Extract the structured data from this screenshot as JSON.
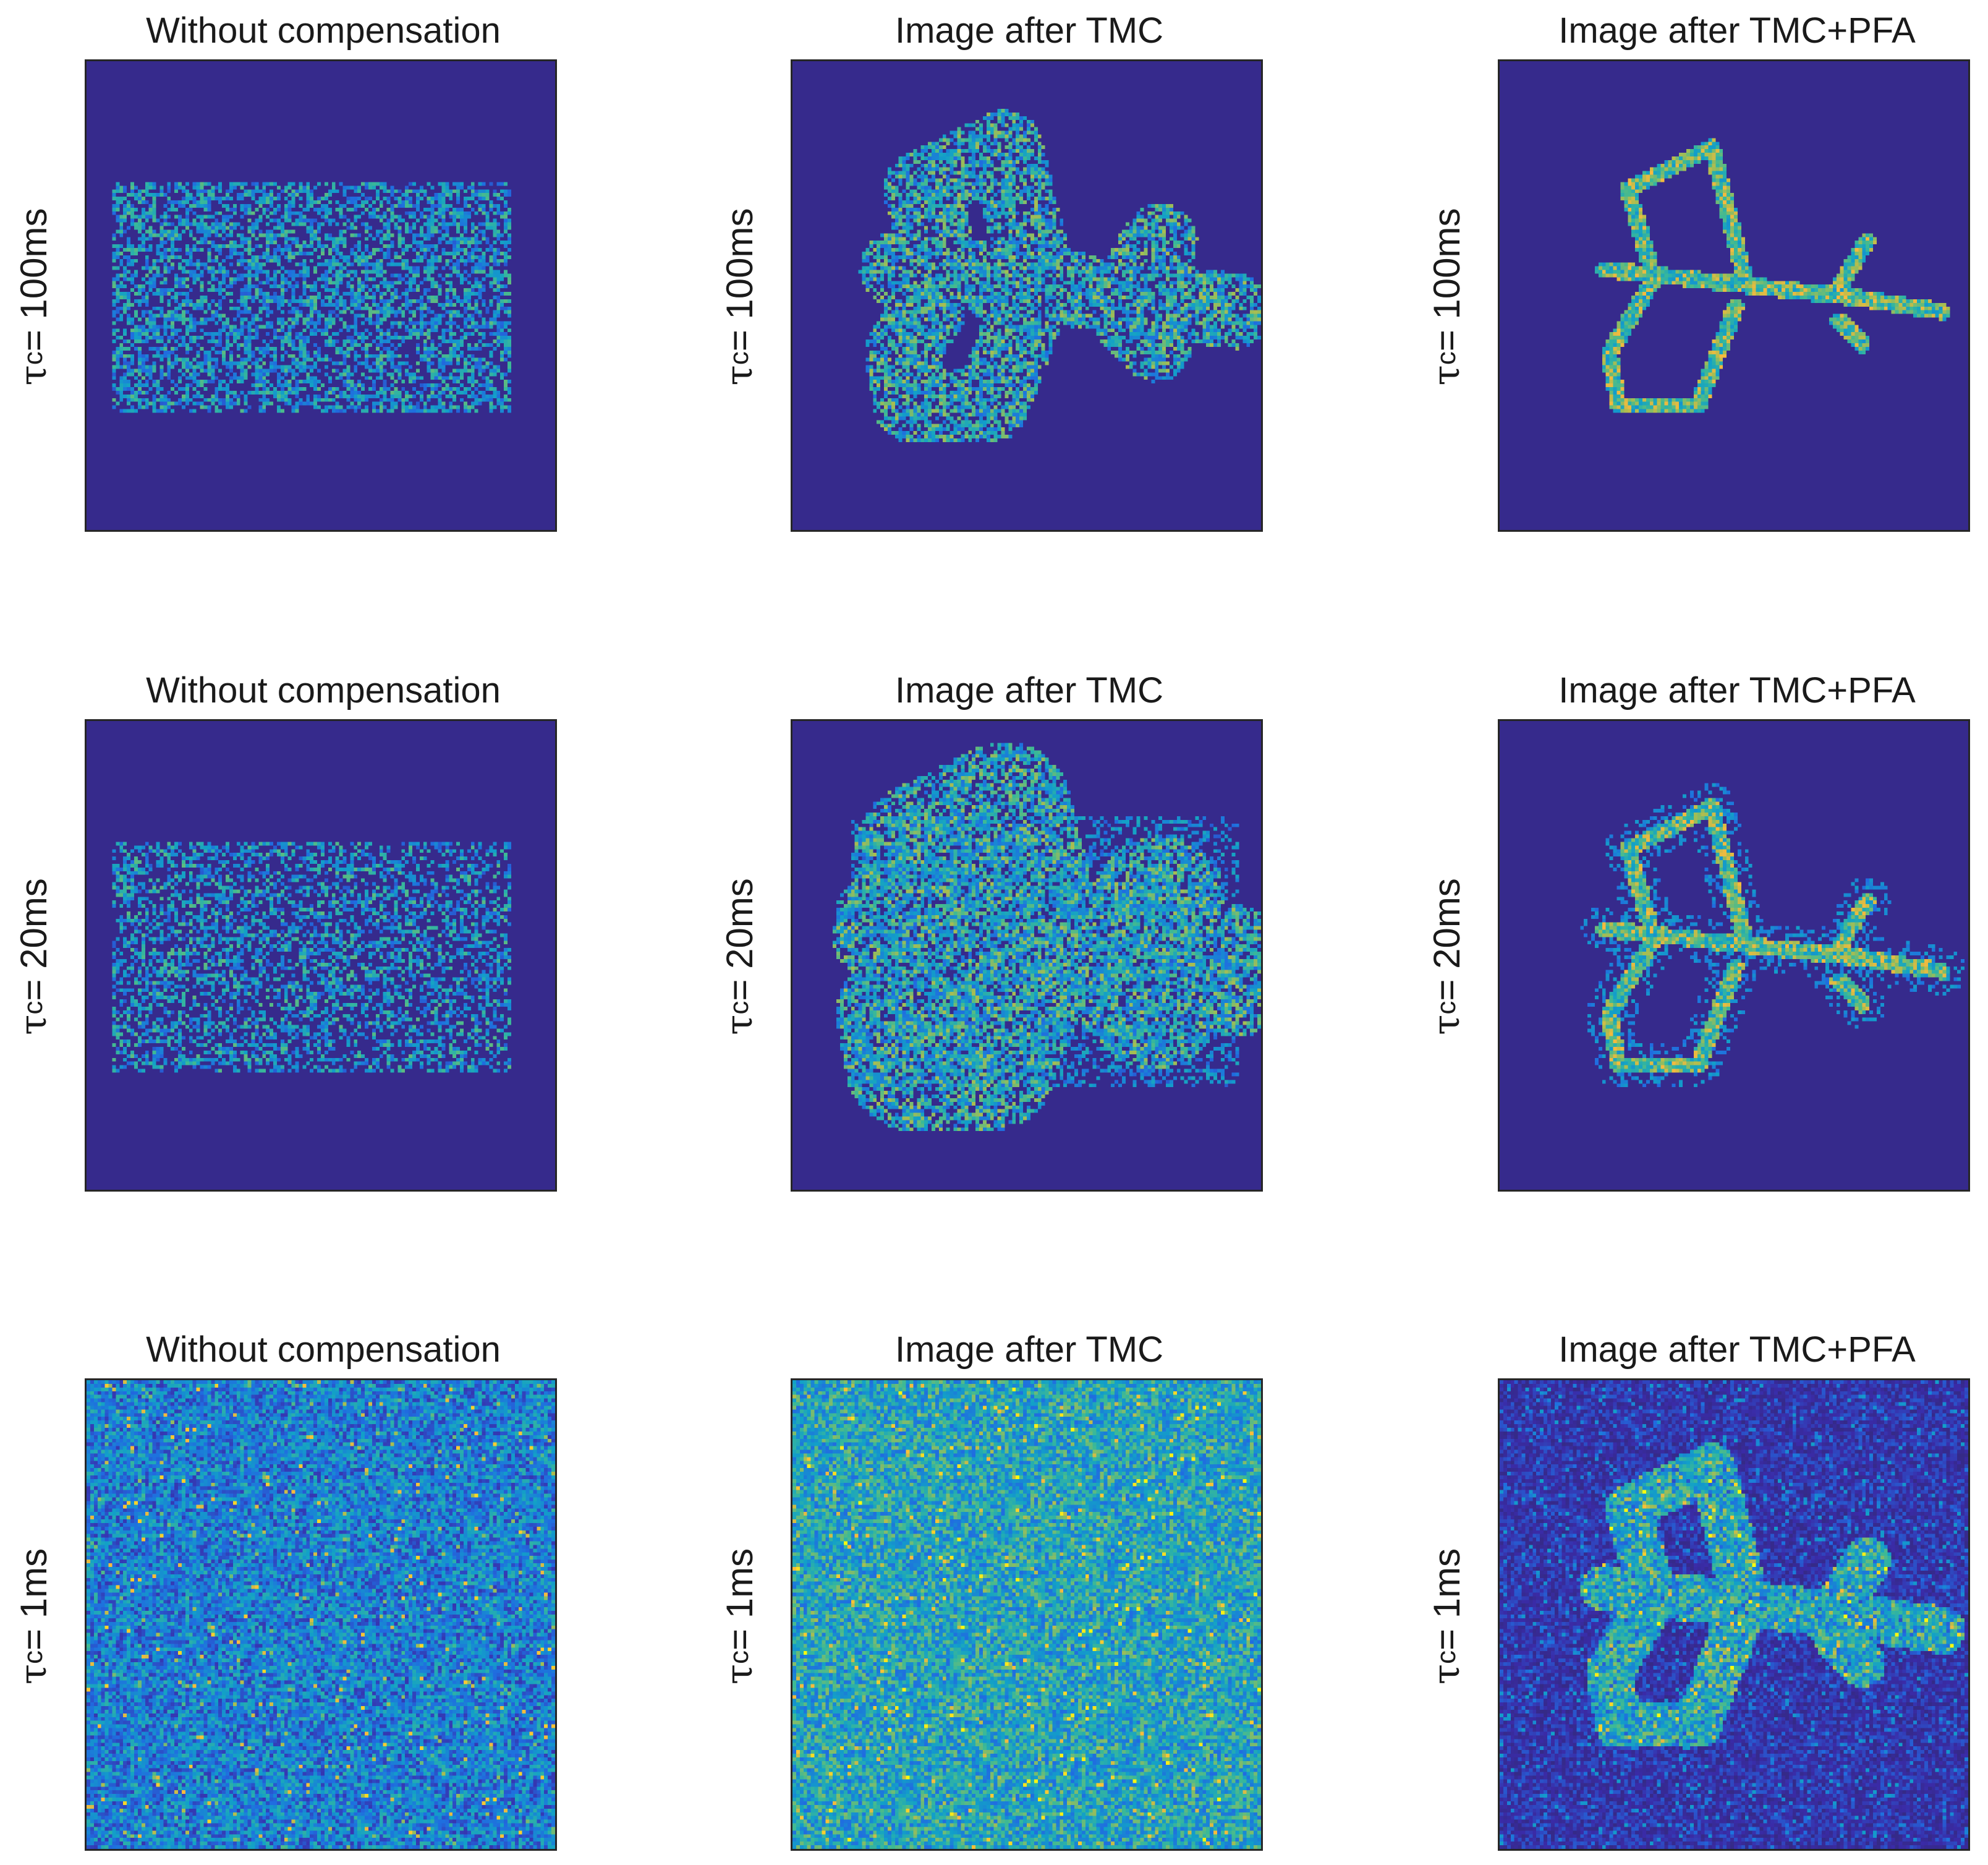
{
  "figure": {
    "column_titles": [
      "Without compensation",
      "Image after TMC",
      "Image after TMC+PFA"
    ],
    "rows": [
      {
        "label_symbol": "τ",
        "label_subscript": "c",
        "label_text": " = 100ms"
      },
      {
        "label_symbol": "τ",
        "label_subscript": "c",
        "label_text": " = 20ms"
      },
      {
        "label_symbol": "τ",
        "label_subscript": "c",
        "label_text": " = 1ms"
      }
    ]
  },
  "chart_data": [
    {
      "type": "heatmap",
      "title": "Without compensation",
      "row_label": "τc = 100ms",
      "colormap": "parula"
    },
    {
      "type": "heatmap",
      "title": "Image after TMC",
      "row_label": "τc = 100ms",
      "colormap": "parula"
    },
    {
      "type": "heatmap",
      "title": "Image after TMC+PFA",
      "row_label": "τc = 100ms",
      "colormap": "parula"
    },
    {
      "type": "heatmap",
      "title": "Without compensation",
      "row_label": "τc = 20ms",
      "colormap": "parula"
    },
    {
      "type": "heatmap",
      "title": "Image after TMC",
      "row_label": "τc = 20ms",
      "colormap": "parula"
    },
    {
      "type": "heatmap",
      "title": "Image after TMC+PFA",
      "row_label": "τc = 20ms",
      "colormap": "parula"
    },
    {
      "type": "heatmap",
      "title": "Without compensation",
      "row_label": "τc = 1ms",
      "colormap": "parula"
    },
    {
      "type": "heatmap",
      "title": "Image after TMC",
      "row_label": "τc = 1ms",
      "colormap": "parula"
    },
    {
      "type": "heatmap",
      "title": "Image after TMC+PFA",
      "row_label": "τc = 1ms",
      "colormap": "parula"
    }
  ]
}
